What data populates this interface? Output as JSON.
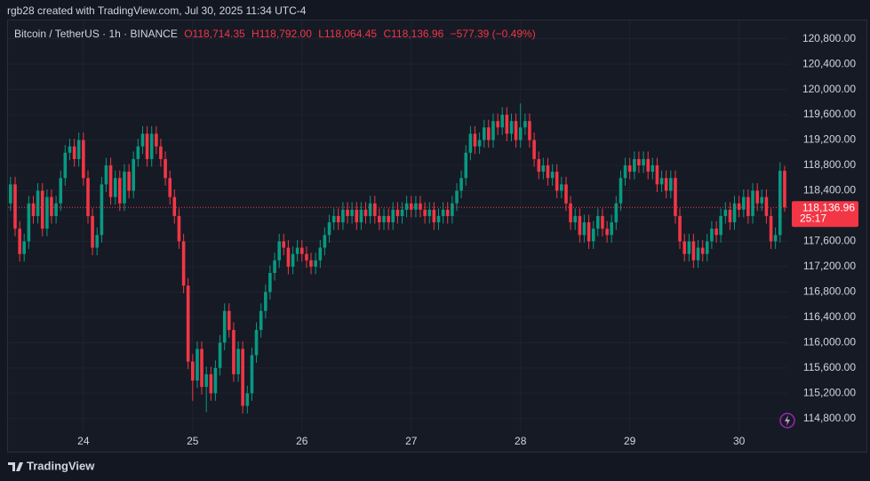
{
  "header": {
    "title": "rgb28 created with TradingView.com, Jul 30, 2025 11:34 UTC-4"
  },
  "footer": {
    "brand": "TradingView"
  },
  "chart_data": {
    "type": "candlestick",
    "legend": {
      "symbol": "Bitcoin / TetherUS · 1h · BINANCE",
      "ohlc": [
        {
          "key": "O",
          "value": "118,714.35"
        },
        {
          "key": "H",
          "value": "118,792.00"
        },
        {
          "key": "L",
          "value": "118,064.45"
        },
        {
          "key": "C",
          "value": "118,136.96"
        }
      ],
      "change": "−577.39 (−0.49%)"
    },
    "last_price_label": "118,136.96",
    "countdown": "25:17",
    "up_color": "#089981",
    "down_color": "#f23645",
    "grid": true,
    "xlim": [
      23.31,
      30.45
    ],
    "xticks": [
      24,
      25,
      26,
      27,
      28,
      29,
      30
    ],
    "ylim": [
      114600,
      121090
    ],
    "yticks": [
      {
        "value": 114800,
        "label": "114,800.00"
      },
      {
        "value": 115200,
        "label": "115,200.00"
      },
      {
        "value": 115600,
        "label": "115,600.00"
      },
      {
        "value": 116000,
        "label": "116,000.00"
      },
      {
        "value": 116400,
        "label": "116,400.00"
      },
      {
        "value": 116800,
        "label": "116,800.00"
      },
      {
        "value": 117200,
        "label": "117,200.00"
      },
      {
        "value": 117600,
        "label": "117,600.00"
      },
      {
        "value": 118000,
        "label": "118,000.00"
      },
      {
        "value": 118400,
        "label": "118,400.00"
      },
      {
        "value": 118800,
        "label": "118,800.00"
      },
      {
        "value": 119200,
        "label": "119,200.00"
      },
      {
        "value": 119600,
        "label": "119,600.00"
      },
      {
        "value": 120000,
        "label": "120,000.00"
      },
      {
        "value": 120400,
        "label": "120,400.00"
      },
      {
        "value": 120800,
        "label": "120,800.00"
      }
    ],
    "x": [
      23.333,
      23.375,
      23.417,
      23.458,
      23.5,
      23.542,
      23.583,
      23.625,
      23.667,
      23.708,
      23.75,
      23.792,
      23.833,
      23.875,
      23.917,
      23.958,
      24,
      24.042,
      24.083,
      24.125,
      24.167,
      24.208,
      24.25,
      24.292,
      24.333,
      24.375,
      24.417,
      24.458,
      24.5,
      24.542,
      24.583,
      24.625,
      24.667,
      24.708,
      24.75,
      24.792,
      24.833,
      24.875,
      24.917,
      24.958,
      25,
      25.042,
      25.083,
      25.125,
      25.167,
      25.208,
      25.25,
      25.292,
      25.333,
      25.375,
      25.417,
      25.458,
      25.5,
      25.542,
      25.583,
      25.625,
      25.667,
      25.708,
      25.75,
      25.792,
      25.833,
      25.875,
      25.917,
      25.958,
      26,
      26.042,
      26.083,
      26.125,
      26.167,
      26.208,
      26.25,
      26.292,
      26.333,
      26.375,
      26.417,
      26.458,
      26.5,
      26.542,
      26.583,
      26.625,
      26.667,
      26.708,
      26.75,
      26.792,
      26.833,
      26.875,
      26.917,
      26.958,
      27,
      27.042,
      27.083,
      27.125,
      27.167,
      27.208,
      27.25,
      27.292,
      27.333,
      27.375,
      27.417,
      27.458,
      27.5,
      27.542,
      27.583,
      27.625,
      27.667,
      27.708,
      27.75,
      27.792,
      27.833,
      27.875,
      27.917,
      27.958,
      28,
      28.042,
      28.083,
      28.125,
      28.167,
      28.208,
      28.25,
      28.292,
      28.333,
      28.375,
      28.417,
      28.458,
      28.5,
      28.542,
      28.583,
      28.625,
      28.667,
      28.708,
      28.75,
      28.792,
      28.833,
      28.875,
      28.917,
      28.958,
      29,
      29.042,
      29.083,
      29.125,
      29.167,
      29.208,
      29.25,
      29.292,
      29.333,
      29.375,
      29.417,
      29.458,
      29.5,
      29.542,
      29.583,
      29.625,
      29.667,
      29.708,
      29.75,
      29.792,
      29.833,
      29.875,
      29.917,
      29.958,
      30,
      30.042,
      30.083,
      30.125,
      30.167,
      30.208,
      30.25,
      30.292,
      30.333,
      30.375,
      30.417
    ],
    "open": [
      118200,
      118500,
      117800,
      117400,
      117600,
      118200,
      118000,
      118400,
      117800,
      118300,
      118000,
      118200,
      118600,
      119000,
      119100,
      118900,
      119200,
      118600,
      118000,
      117500,
      117700,
      118500,
      118800,
      118300,
      118600,
      118200,
      118700,
      118400,
      118900,
      119100,
      119300,
      118900,
      119300,
      119100,
      118900,
      118600,
      118300,
      118000,
      117600,
      116900,
      115700,
      115400,
      115900,
      115300,
      115500,
      115200,
      115600,
      116000,
      116500,
      116200,
      115500,
      115900,
      115000,
      115200,
      115800,
      116200,
      116500,
      116800,
      117100,
      117300,
      117600,
      117500,
      117200,
      117400,
      117500,
      117400,
      117300,
      117200,
      117300,
      117500,
      117700,
      117900,
      118000,
      117900,
      118100,
      118000,
      118100,
      117900,
      118100,
      118000,
      118200,
      118000,
      117900,
      118000,
      117900,
      118100,
      118000,
      118100,
      118200,
      118100,
      118200,
      118100,
      118000,
      118100,
      117900,
      118000,
      118100,
      118000,
      118200,
      118400,
      118600,
      119000,
      119300,
      119100,
      119200,
      119400,
      119200,
      119500,
      119400,
      119600,
      119300,
      119500,
      119200,
      119400,
      119500,
      119200,
      118900,
      118700,
      118800,
      118600,
      118700,
      118400,
      118500,
      118200,
      117900,
      118000,
      117700,
      117900,
      117600,
      117800,
      118000,
      117800,
      117700,
      117900,
      118200,
      118600,
      118800,
      118700,
      118900,
      118800,
      118900,
      118700,
      118800,
      118500,
      118600,
      118400,
      118600,
      118000,
      117600,
      117400,
      117600,
      117300,
      117500,
      117400,
      117600,
      117800,
      117700,
      118000,
      118100,
      117900,
      118200,
      118100,
      118300,
      118000,
      118400,
      118200,
      118300,
      118000,
      117600,
      117700,
      118714.35
    ],
    "high": [
      118620,
      118620,
      117920,
      117720,
      118320,
      118320,
      118520,
      118520,
      118420,
      118420,
      118320,
      118720,
      119120,
      119220,
      119220,
      119320,
      119320,
      118720,
      118120,
      117820,
      118620,
      118920,
      118920,
      118720,
      118720,
      118820,
      118820,
      119020,
      119220,
      119420,
      119420,
      119420,
      119420,
      119220,
      119020,
      118720,
      118420,
      118120,
      117720,
      117020,
      115820,
      116020,
      116020,
      115620,
      115620,
      115720,
      116120,
      116620,
      116620,
      116320,
      116020,
      116020,
      115320,
      115920,
      116320,
      116620,
      116920,
      117220,
      117420,
      117720,
      117720,
      117620,
      117520,
      117620,
      117620,
      117520,
      117420,
      117420,
      117620,
      117820,
      118020,
      118120,
      118120,
      118220,
      118220,
      118220,
      118220,
      118220,
      118220,
      118320,
      118320,
      118120,
      118120,
      118120,
      118220,
      118220,
      118220,
      118320,
      118320,
      118320,
      118320,
      118220,
      118220,
      118220,
      118120,
      118220,
      118220,
      118320,
      118520,
      118720,
      119120,
      119420,
      119420,
      119320,
      119520,
      119520,
      119620,
      119620,
      119720,
      119720,
      119620,
      119620,
      119780,
      119620,
      119620,
      119320,
      119020,
      118920,
      118920,
      118820,
      118820,
      118620,
      118620,
      118320,
      118120,
      118120,
      118020,
      118020,
      117920,
      118120,
      118120,
      117920,
      118020,
      118320,
      118720,
      118920,
      118920,
      119020,
      119020,
      119020,
      119020,
      118920,
      118920,
      118720,
      118720,
      118720,
      118720,
      118120,
      117720,
      117720,
      117720,
      117620,
      117620,
      117720,
      117920,
      117920,
      118120,
      118220,
      118220,
      118320,
      118320,
      118420,
      118420,
      118520,
      118520,
      118420,
      118420,
      118120,
      117820,
      118850,
      118792
    ],
    "low": [
      118080,
      117680,
      117280,
      117280,
      117480,
      117880,
      117880,
      117680,
      117680,
      117880,
      117880,
      118080,
      118480,
      118880,
      118780,
      118780,
      118480,
      117880,
      117380,
      117380,
      117580,
      118380,
      118180,
      118180,
      118080,
      118080,
      118280,
      118280,
      118780,
      118980,
      118780,
      118780,
      118980,
      118780,
      118480,
      118180,
      117880,
      117480,
      116780,
      115580,
      115080,
      115280,
      115180,
      114900,
      115080,
      115080,
      115480,
      115880,
      116080,
      115380,
      115380,
      114880,
      114880,
      115080,
      115680,
      116080,
      116380,
      116680,
      116980,
      117180,
      117380,
      117080,
      117080,
      117280,
      117280,
      117180,
      117080,
      117080,
      117180,
      117380,
      117580,
      117780,
      117780,
      117780,
      117880,
      117880,
      117780,
      117780,
      117880,
      117880,
      117880,
      117780,
      117780,
      117780,
      117780,
      117880,
      117880,
      117980,
      117980,
      117980,
      117980,
      117880,
      117880,
      117780,
      117780,
      117880,
      117880,
      117880,
      118080,
      118280,
      118480,
      118880,
      118980,
      118980,
      119080,
      119080,
      119080,
      119280,
      119280,
      119180,
      119180,
      119080,
      119080,
      119280,
      119080,
      118780,
      118580,
      118580,
      118480,
      118480,
      118280,
      118280,
      118080,
      117780,
      117780,
      117580,
      117580,
      117480,
      117480,
      117680,
      117680,
      117580,
      117580,
      117780,
      118080,
      118480,
      118580,
      118580,
      118680,
      118680,
      118580,
      118580,
      118380,
      118380,
      118280,
      118280,
      117880,
      117480,
      117280,
      117280,
      117180,
      117180,
      117280,
      117280,
      117480,
      117580,
      117580,
      117880,
      117780,
      117780,
      117980,
      117980,
      117880,
      117880,
      118080,
      118080,
      117880,
      117480,
      117480,
      117580,
      118064.45
    ],
    "close": [
      118500,
      117800,
      117400,
      117600,
      118200,
      118000,
      118400,
      117800,
      118300,
      118000,
      118200,
      118600,
      119000,
      119100,
      118900,
      119200,
      118600,
      118000,
      117500,
      117700,
      118500,
      118800,
      118300,
      118600,
      118200,
      118700,
      118400,
      118900,
      119100,
      119300,
      118900,
      119300,
      119100,
      118900,
      118600,
      118300,
      118000,
      117600,
      116900,
      115700,
      115400,
      115900,
      115300,
      115500,
      115200,
      115600,
      116000,
      116500,
      116200,
      115500,
      115900,
      115000,
      115200,
      115800,
      116200,
      116500,
      116800,
      117100,
      117300,
      117600,
      117500,
      117200,
      117400,
      117500,
      117400,
      117300,
      117200,
      117300,
      117500,
      117700,
      117900,
      118000,
      117900,
      118100,
      118000,
      118100,
      117900,
      118100,
      118000,
      118200,
      118000,
      117900,
      118000,
      117900,
      118100,
      118000,
      118100,
      118200,
      118100,
      118200,
      118100,
      118000,
      118100,
      117900,
      118000,
      118100,
      118000,
      118200,
      118400,
      118600,
      119000,
      119300,
      119100,
      119200,
      119400,
      119200,
      119500,
      119400,
      119600,
      119300,
      119500,
      119200,
      119400,
      119500,
      119200,
      118900,
      118700,
      118800,
      118600,
      118700,
      118400,
      118500,
      118200,
      117900,
      118000,
      117700,
      117900,
      117600,
      117800,
      118000,
      117800,
      117700,
      117900,
      118200,
      118600,
      118800,
      118700,
      118900,
      118800,
      118900,
      118700,
      118800,
      118500,
      118600,
      118400,
      118600,
      118000,
      117600,
      117400,
      117600,
      117300,
      117500,
      117400,
      117600,
      117800,
      117700,
      118000,
      118100,
      117900,
      118200,
      118100,
      118300,
      118000,
      118400,
      118200,
      118300,
      118000,
      117600,
      117700,
      118714.35,
      118136.96
    ]
  }
}
